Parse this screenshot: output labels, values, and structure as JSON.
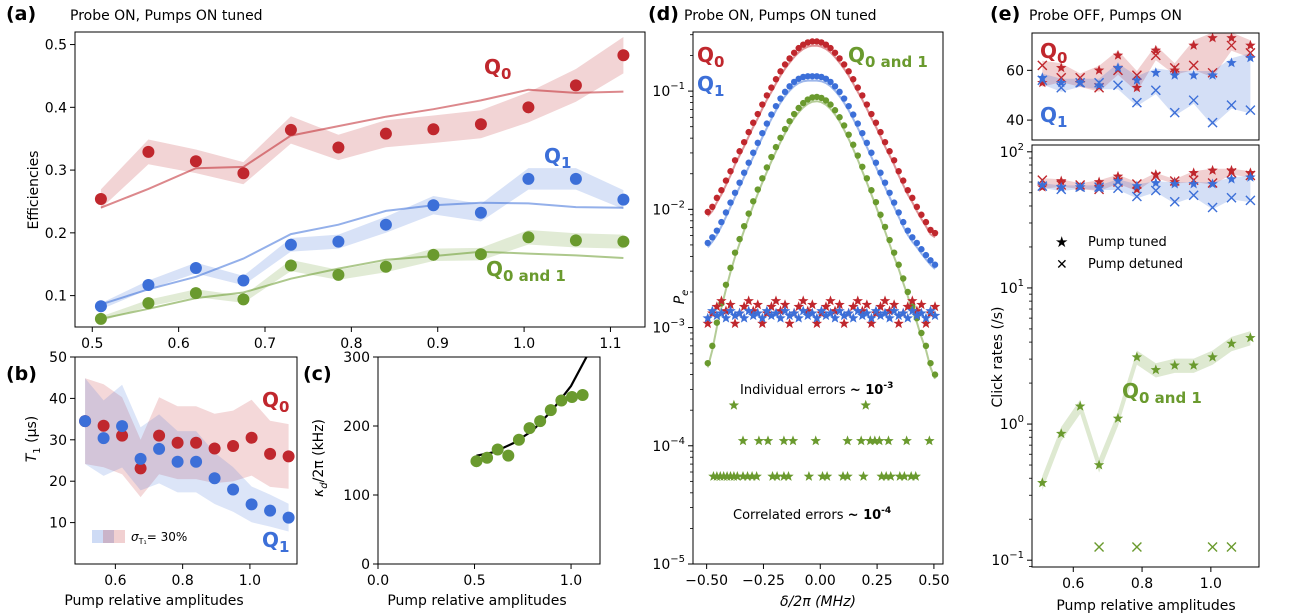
{
  "colors": {
    "q0": "#c0272d",
    "q1": "#3c6fd8",
    "q01": "#6a9a2e",
    "fit": "#000000"
  },
  "panels": {
    "a": {
      "tag": "(a)",
      "title": "Probe ON, Pumps ON tuned",
      "ylabel": "Efficiencies",
      "ylim": [
        0.05,
        0.52
      ],
      "xlim": [
        0.48,
        1.14
      ],
      "xticks": [
        0.5,
        0.6,
        0.7,
        0.8,
        0.9,
        1.0,
        1.1
      ],
      "yticks": [
        0.1,
        0.2,
        0.3,
        0.4,
        0.5
      ],
      "labels": {
        "q0": "Q",
        "q0_sub": "0",
        "q1": "Q",
        "q1_sub": "1",
        "q01": "Q",
        "q01_sub": "0 and 1"
      }
    },
    "b": {
      "tag": "(b)",
      "xlabel": "Pump relative amplitudes",
      "ylabel": "T",
      "ylabel_sub": "1",
      "ylabel_unit": " (µs)",
      "ylim": [
        0,
        50
      ],
      "xlim": [
        0.48,
        1.14
      ],
      "xticks": [
        0.6,
        0.8,
        1.0
      ],
      "yticks": [
        10,
        20,
        30,
        40,
        50
      ],
      "legend_sigma": "σ",
      "legend_sigma_sub": "T₁",
      "legend_text": "= 30%",
      "labels": {
        "q0": "Q",
        "q0_sub": "0",
        "q1": "Q",
        "q1_sub": "1"
      }
    },
    "c": {
      "tag": "(c)",
      "xlabel": "Pump relative amplitudes",
      "ylabel": "κ",
      "ylabel_sub": "d",
      "ylabel_unit": "/2π (kHz)",
      "ylim": [
        0,
        300
      ],
      "xlim": [
        0,
        1.15
      ],
      "xticks": [
        0.0,
        0.5,
        1.0
      ],
      "yticks": [
        0,
        100,
        200,
        300
      ]
    },
    "d": {
      "tag": "(d)",
      "title": "Probe ON, Pumps ON tuned",
      "xlabel": "δ/2π (MHz)",
      "ylabel": "P",
      "ylabel_sub": "e",
      "xlim": [
        -0.56,
        0.54
      ],
      "ylog": [
        -5,
        -0.5
      ],
      "xticks": [
        -0.5,
        -0.25,
        0.0,
        0.25,
        0.5
      ],
      "xticklabels": [
        "−0.50",
        "−0.25",
        "0.00",
        "0.25",
        "0.50"
      ],
      "yticks": [
        -5,
        -4,
        -3,
        -2,
        -1
      ],
      "ann_ind": "Individual errors",
      "ann_ind_val": "~ 10",
      "ann_ind_exp": "-3",
      "ann_cor": "Correlated errors",
      "ann_cor_val": "~ 10",
      "ann_cor_exp": "-4",
      "labels": {
        "q0": "Q",
        "q0_sub": "0",
        "q1": "Q",
        "q1_sub": "1",
        "q01": "Q",
        "q01_sub": "0 and 1"
      }
    },
    "e": {
      "tag": "(e)",
      "title": "Probe OFF, Pumps ON",
      "xlabel": "Pump relative amplitudes",
      "ylabel": "Click rates (/s)",
      "xlim": [
        0.48,
        1.14
      ],
      "xticks": [
        0.6,
        0.8,
        1.0
      ],
      "top_ylim": [
        32,
        75
      ],
      "top_yticks": [
        40,
        60
      ],
      "ylog": [
        -1.05,
        2.05
      ],
      "yticks": [
        -1,
        0,
        1,
        2
      ],
      "legend": [
        {
          "symbol": "★",
          "label": "Pump tuned"
        },
        {
          "symbol": "✕",
          "label": "Pump detuned"
        }
      ],
      "labels": {
        "q0": "Q",
        "q0_sub": "0",
        "q1": "Q",
        "q1_sub": "1",
        "q01": "Q",
        "q01_sub": "0 and 1"
      }
    }
  },
  "chart_data": [
    {
      "id": "a",
      "type": "scatter",
      "x": [
        0.51,
        0.565,
        0.62,
        0.675,
        0.73,
        0.785,
        0.84,
        0.895,
        0.95,
        1.005,
        1.06,
        1.115
      ],
      "series": [
        {
          "name": "Q0",
          "values": [
            0.254,
            0.329,
            0.314,
            0.295,
            0.364,
            0.336,
            0.358,
            0.365,
            0.373,
            0.4,
            0.435,
            0.483
          ],
          "model": [
            0.24,
            0.27,
            0.303,
            0.305,
            0.355,
            0.37,
            0.385,
            0.397,
            0.411,
            0.428,
            0.423,
            0.425
          ]
        },
        {
          "name": "Q1",
          "values": [
            0.083,
            0.117,
            0.144,
            0.124,
            0.181,
            0.186,
            0.213,
            0.244,
            0.232,
            0.286,
            0.286,
            0.253
          ],
          "model": [
            0.086,
            0.11,
            0.13,
            0.159,
            0.198,
            0.213,
            0.235,
            0.244,
            0.248,
            0.247,
            0.241,
            0.24
          ]
        },
        {
          "name": "Q0 and 1",
          "values": [
            0.063,
            0.088,
            0.104,
            0.094,
            0.148,
            0.133,
            0.146,
            0.165,
            0.166,
            0.193,
            0.188,
            0.186
          ],
          "model": [
            0.063,
            0.079,
            0.096,
            0.105,
            0.127,
            0.143,
            0.157,
            0.163,
            0.17,
            0.167,
            0.164,
            0.16
          ]
        }
      ]
    },
    {
      "id": "b",
      "type": "scatter",
      "x": [
        0.51,
        0.565,
        0.62,
        0.675,
        0.73,
        0.785,
        0.84,
        0.895,
        0.95,
        1.005,
        1.06,
        1.115
      ],
      "series": [
        {
          "name": "Q0",
          "values": [
            34.5,
            33.4,
            31.0,
            23.1,
            31.0,
            29.3,
            29.3,
            27.9,
            28.5,
            30.5,
            26.6,
            26.0
          ]
        },
        {
          "name": "Q1",
          "values": [
            34.5,
            30.4,
            33.3,
            25.4,
            27.8,
            24.7,
            24.7,
            20.7,
            18.0,
            14.4,
            12.9,
            11.2
          ]
        }
      ],
      "legend": "σ_T1 = 30%"
    },
    {
      "id": "c",
      "type": "scatter",
      "x": [
        0.51,
        0.565,
        0.62,
        0.675,
        0.73,
        0.785,
        0.84,
        0.895,
        0.95,
        1.005,
        1.06
      ],
      "values": [
        149,
        154,
        166,
        157,
        180,
        197,
        207,
        223,
        237,
        242,
        245
      ],
      "fit": {
        "x": [
          0.51,
          0.6,
          0.7,
          0.8,
          0.9,
          1.0,
          1.08
        ],
        "y": [
          157,
          162,
          175,
          193,
          222,
          258,
          300
        ]
      }
    },
    {
      "id": "d",
      "type": "scatter",
      "x": [
        -0.495,
        -0.475,
        -0.455,
        -0.435,
        -0.415,
        -0.395,
        -0.375,
        -0.355,
        -0.335,
        -0.315,
        -0.295,
        -0.275,
        -0.255,
        -0.235,
        -0.215,
        -0.195,
        -0.175,
        -0.155,
        -0.135,
        -0.115,
        -0.095,
        -0.075,
        -0.055,
        -0.035,
        -0.015,
        0.005,
        0.025,
        0.045,
        0.065,
        0.085,
        0.105,
        0.125,
        0.145,
        0.165,
        0.185,
        0.205,
        0.225,
        0.245,
        0.265,
        0.285,
        0.305,
        0.325,
        0.345,
        0.365,
        0.385,
        0.405,
        0.425,
        0.445,
        0.465,
        0.485,
        0.505
      ],
      "series": [
        {
          "name": "Q0",
          "values": [
            0.0095,
            0.0105,
            0.0125,
            0.0145,
            0.0175,
            0.021,
            0.026,
            0.031,
            0.037,
            0.045,
            0.054,
            0.064,
            0.077,
            0.092,
            0.107,
            0.126,
            0.147,
            0.168,
            0.189,
            0.211,
            0.231,
            0.247,
            0.258,
            0.263,
            0.263,
            0.258,
            0.247,
            0.231,
            0.211,
            0.189,
            0.168,
            0.147,
            0.126,
            0.107,
            0.092,
            0.077,
            0.064,
            0.054,
            0.045,
            0.037,
            0.031,
            0.026,
            0.021,
            0.0175,
            0.0145,
            0.0125,
            0.0105,
            0.009,
            0.0078,
            0.0067,
            0.0063
          ]
        },
        {
          "name": "Q1",
          "values": [
            0.0052,
            0.0058,
            0.0066,
            0.0078,
            0.0094,
            0.0114,
            0.0138,
            0.0168,
            0.0204,
            0.0248,
            0.0301,
            0.0365,
            0.0441,
            0.0531,
            0.0633,
            0.0746,
            0.0865,
            0.0985,
            0.1098,
            0.1196,
            0.1271,
            0.1318,
            0.1335,
            0.1335,
            0.1335,
            0.1318,
            0.1271,
            0.1196,
            0.1098,
            0.0985,
            0.0865,
            0.0746,
            0.0633,
            0.0531,
            0.0441,
            0.0365,
            0.0301,
            0.0248,
            0.0204,
            0.0168,
            0.0138,
            0.0114,
            0.0094,
            0.0078,
            0.0066,
            0.0058,
            0.0052,
            0.0046,
            0.0041,
            0.0037,
            0.0034
          ]
        },
        {
          "name": "Q0 and 1",
          "values": [
            0.0005,
            0.0007,
            0.0011,
            0.0016,
            0.0023,
            0.0032,
            0.0043,
            0.0056,
            0.0072,
            0.0092,
            0.0117,
            0.0147,
            0.0183,
            0.0226,
            0.0277,
            0.0336,
            0.0403,
            0.0477,
            0.0557,
            0.064,
            0.072,
            0.0792,
            0.0849,
            0.0884,
            0.0893,
            0.0876,
            0.0833,
            0.0769,
            0.0689,
            0.0601,
            0.0512,
            0.0428,
            0.0352,
            0.0285,
            0.0229,
            0.0183,
            0.0145,
            0.0115,
            0.009,
            0.0071,
            0.0055,
            0.0043,
            0.0034,
            0.0026,
            0.002,
            0.0015,
            0.0012,
            0.0009,
            0.0007,
            0.0005,
            0.0004
          ]
        }
      ],
      "errors_individual": {
        "Q0": 0.0012,
        "Q1": 0.0012
      },
      "errors_correlated": {
        "low": 5.5e-05,
        "mid": 0.00011,
        "high": 0.00022
      }
    },
    {
      "id": "e",
      "type": "scatter",
      "x": [
        0.51,
        0.565,
        0.62,
        0.675,
        0.73,
        0.785,
        0.84,
        0.895,
        0.95,
        1.005,
        1.06,
        1.115
      ],
      "series": [
        {
          "name": "Q0 tuned",
          "values": [
            55,
            61,
            55,
            60,
            66,
            53,
            68,
            60,
            70,
            73,
            73,
            70
          ]
        },
        {
          "name": "Q0 detuned",
          "values": [
            62,
            57,
            57,
            53,
            60,
            58,
            66,
            61,
            62,
            59,
            70,
            67
          ]
        },
        {
          "name": "Q1 tuned",
          "values": [
            57,
            55,
            55,
            54,
            61,
            56,
            59,
            58,
            58,
            58,
            63,
            65
          ]
        },
        {
          "name": "Q1 detuned",
          "values": [
            56,
            53,
            55,
            55,
            54,
            47,
            52,
            43,
            48,
            39,
            46,
            44
          ]
        },
        {
          "name": "Q0 and 1 tuned",
          "values": [
            0.37,
            0.85,
            1.35,
            0.5,
            1.1,
            3.1,
            2.5,
            2.7,
            2.7,
            3.1,
            3.9,
            4.3
          ]
        },
        {
          "name": "Q0 and 1 detuned",
          "x": [
            0.675,
            0.785,
            1.005,
            1.06
          ],
          "values": [
            0.125,
            0.125,
            0.125,
            0.125
          ]
        }
      ],
      "legend": [
        "Pump tuned",
        "Pump detuned"
      ]
    }
  ]
}
